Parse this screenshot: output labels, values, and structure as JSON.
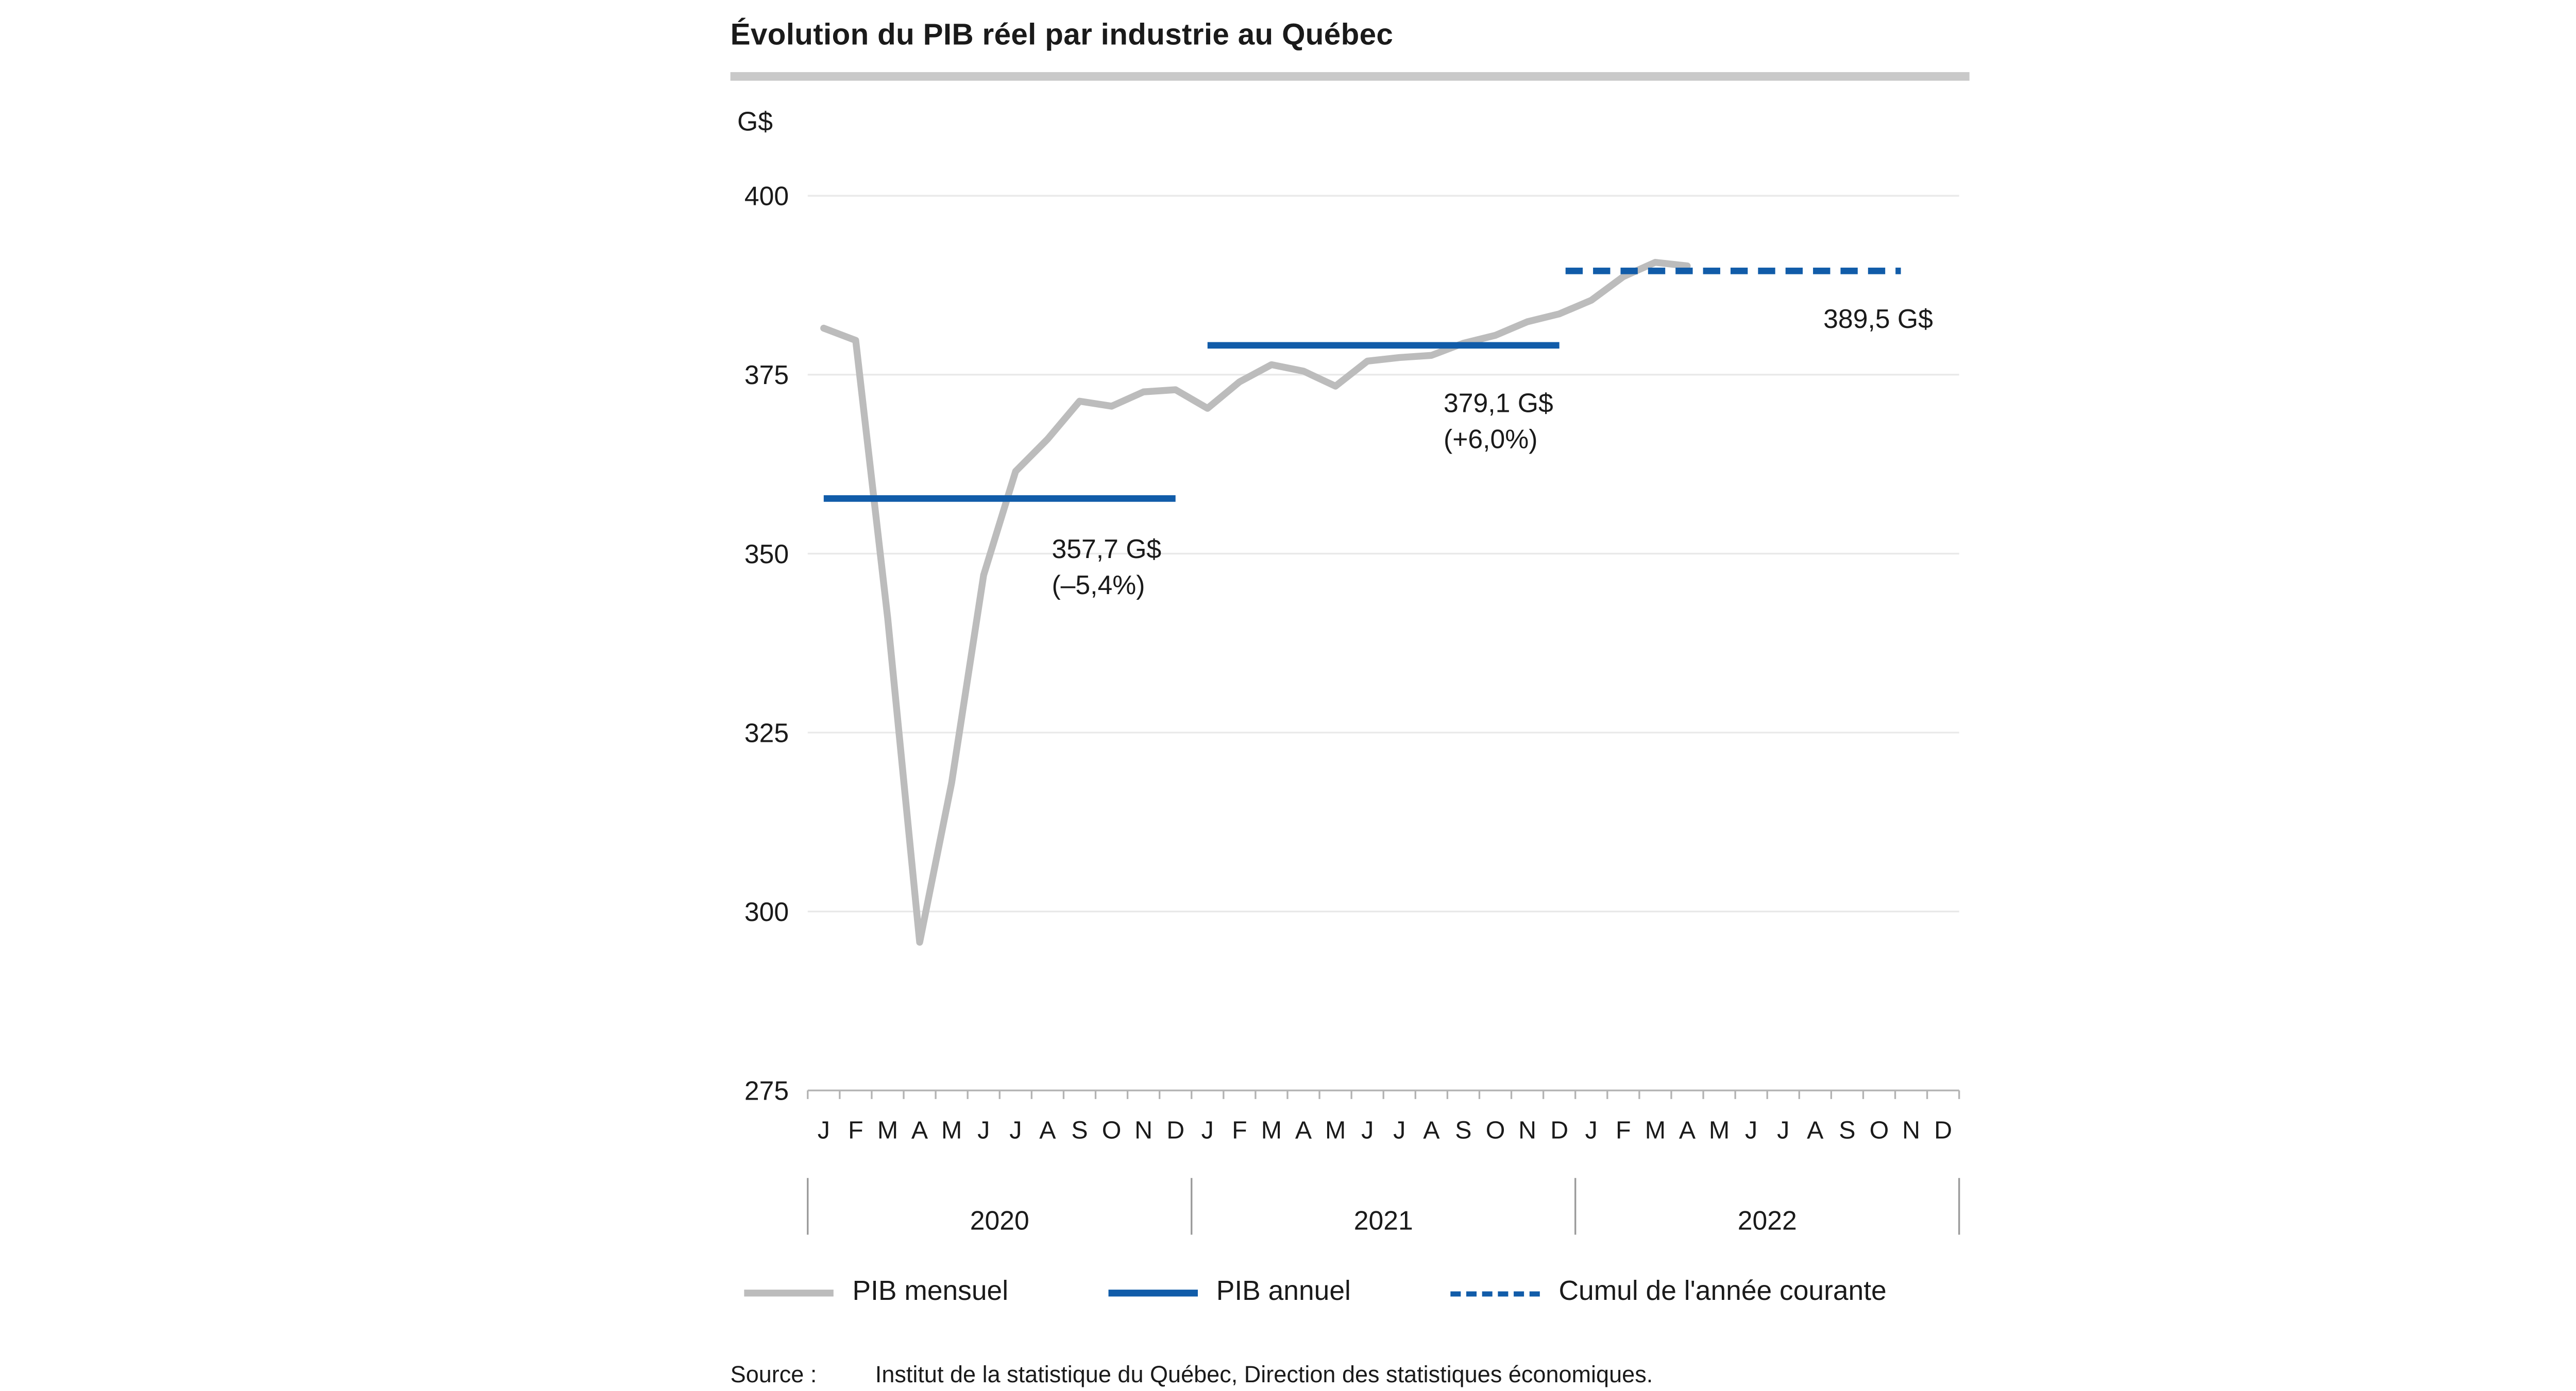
{
  "title": "Évolution du PIB réel par industrie au Québec",
  "source": {
    "prefix": "Source :",
    "text": "Institut de la statistique du Québec, Direction des statistiques économiques."
  },
  "legend": [
    {
      "label": "PIB mensuel",
      "style": "solid",
      "color": "#bcbcbc"
    },
    {
      "label": "PIB annuel",
      "style": "solid",
      "color": "#115ca9"
    },
    {
      "label": "Cumul de l'année courante",
      "style": "dashed",
      "color": "#115ca9"
    }
  ],
  "colors": {
    "monthly_line": "#bcbcbc",
    "annual_line": "#115ca9",
    "gridline": "#e9e9e9",
    "axis": "#b3b3b3",
    "text": "#1a1a1a",
    "title_rule": "#c9c9c9"
  },
  "chart_data": {
    "type": "line",
    "title": "Évolution du PIB réel par industrie au Québec",
    "xlabel": "",
    "ylabel": "G$",
    "ylim": [
      275,
      400
    ],
    "yticks": [
      400,
      375,
      350,
      325,
      300,
      275
    ],
    "grid": true,
    "legend_position": "bottom",
    "month_labels": [
      "J",
      "F",
      "M",
      "A",
      "M",
      "J",
      "J",
      "A",
      "S",
      "O",
      "N",
      "D"
    ],
    "years": [
      "2020",
      "2021",
      "2022"
    ],
    "series": [
      {
        "name": "PIB mensuel",
        "type": "line",
        "color": "#bcbcbc",
        "start_month_index": 0,
        "values": [
          381.5,
          379.8,
          341.0,
          295.7,
          318.0,
          347.0,
          361.5,
          366.0,
          371.3,
          370.6,
          372.6,
          372.9,
          370.3,
          374.0,
          376.4,
          375.5,
          373.4,
          376.9,
          377.4,
          377.7,
          379.4,
          380.5,
          382.4,
          383.5,
          385.4,
          388.7,
          390.7,
          390.2
        ]
      },
      {
        "name": "PIB annuel",
        "type": "horizontal-segment",
        "color": "#115ca9",
        "segments": [
          {
            "year": "2020",
            "value": 357.7,
            "label": "357,7 G$",
            "change": "(–5,4%)"
          },
          {
            "year": "2021",
            "value": 379.1,
            "label": "379,1 G$",
            "change": "(+6,0%)"
          }
        ]
      },
      {
        "name": "Cumul de l'année courante",
        "type": "horizontal-dashed-segment",
        "color": "#115ca9",
        "segments": [
          {
            "year": "2022",
            "value": 389.5,
            "label": "389,5 G$"
          }
        ]
      }
    ]
  }
}
